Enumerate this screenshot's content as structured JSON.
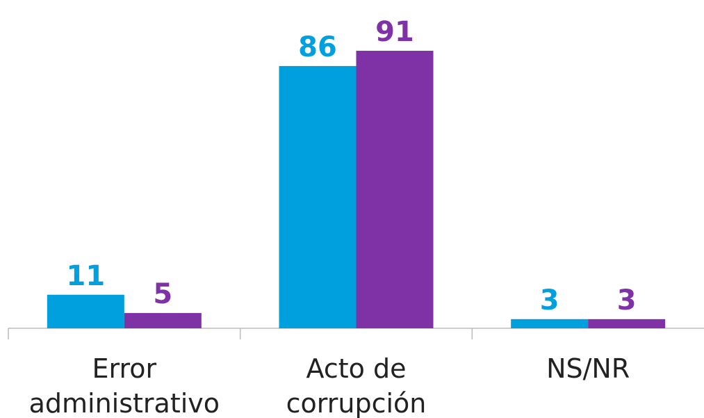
{
  "chart_data": {
    "type": "bar",
    "categories": [
      [
        "Error",
        "administrativo"
      ],
      [
        "Acto de",
        "corrupción"
      ],
      [
        "NS/NR"
      ]
    ],
    "series": [
      {
        "color": "#00a0df",
        "values": [
          11,
          86,
          3
        ]
      },
      {
        "color": "#7f32a6",
        "values": [
          5,
          91,
          3
        ]
      }
    ]
  }
}
